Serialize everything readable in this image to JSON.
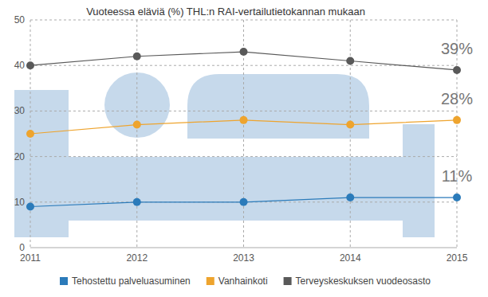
{
  "chart_data": {
    "type": "line",
    "title": "Vuoteessa eläviä (%) THL:n RAI-vertailutietokannan mukaan",
    "x": [
      2011,
      2012,
      2013,
      2014,
      2015
    ],
    "xlim": [
      2011,
      2015
    ],
    "xticks": [
      2011,
      2012,
      2013,
      2014,
      2015
    ],
    "ylim": [
      0,
      50
    ],
    "yticks": [
      0,
      10,
      20,
      30,
      40,
      50
    ],
    "grid": true,
    "legend": "bottom",
    "data_labels": true,
    "series": [
      {
        "name": "Tehostettu palveluasuminen",
        "color": "#2b7bba",
        "marker": "circle",
        "values": [
          9,
          10,
          10,
          11,
          11
        ],
        "value_labels": [
          null,
          null,
          null,
          null,
          "11%"
        ]
      },
      {
        "name": "Vanhainkoti",
        "color": "#eea42e",
        "marker": "circle",
        "values": [
          25,
          27,
          28,
          27,
          28
        ],
        "value_labels": [
          null,
          null,
          null,
          null,
          "28%"
        ]
      },
      {
        "name": "Terveyskeskuksen vuodeosasto",
        "color": "#595959",
        "marker": "circle",
        "values": [
          40,
          42,
          43,
          41,
          39
        ],
        "value_labels": [
          null,
          null,
          null,
          null,
          "39%"
        ]
      }
    ]
  }
}
